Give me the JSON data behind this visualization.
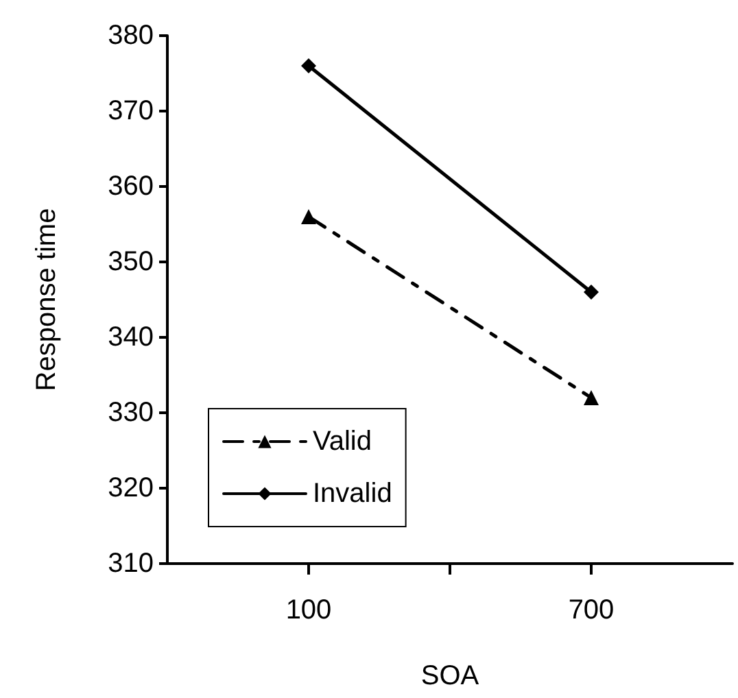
{
  "chart_data": {
    "type": "line",
    "xlabel": "SOA",
    "ylabel": "Response time",
    "x": [
      100,
      700
    ],
    "xlim": [
      -200,
      1000
    ],
    "xticks": [
      100,
      {
        "value": 400,
        "label": null
      },
      700
    ],
    "series": [
      {
        "name": "Valid",
        "color": "#000000",
        "values": [
          356,
          332
        ],
        "marker": "triangle",
        "line_style": "dashed"
      },
      {
        "name": "Invalid",
        "color": "#000000",
        "values": [
          376,
          346
        ],
        "marker": "diamond",
        "line_style": "solid"
      }
    ],
    "ylim": [
      310,
      380
    ],
    "yticks": [
      310,
      320,
      330,
      340,
      350,
      360,
      370,
      380
    ],
    "grid": false,
    "legend": "bottom left"
  }
}
